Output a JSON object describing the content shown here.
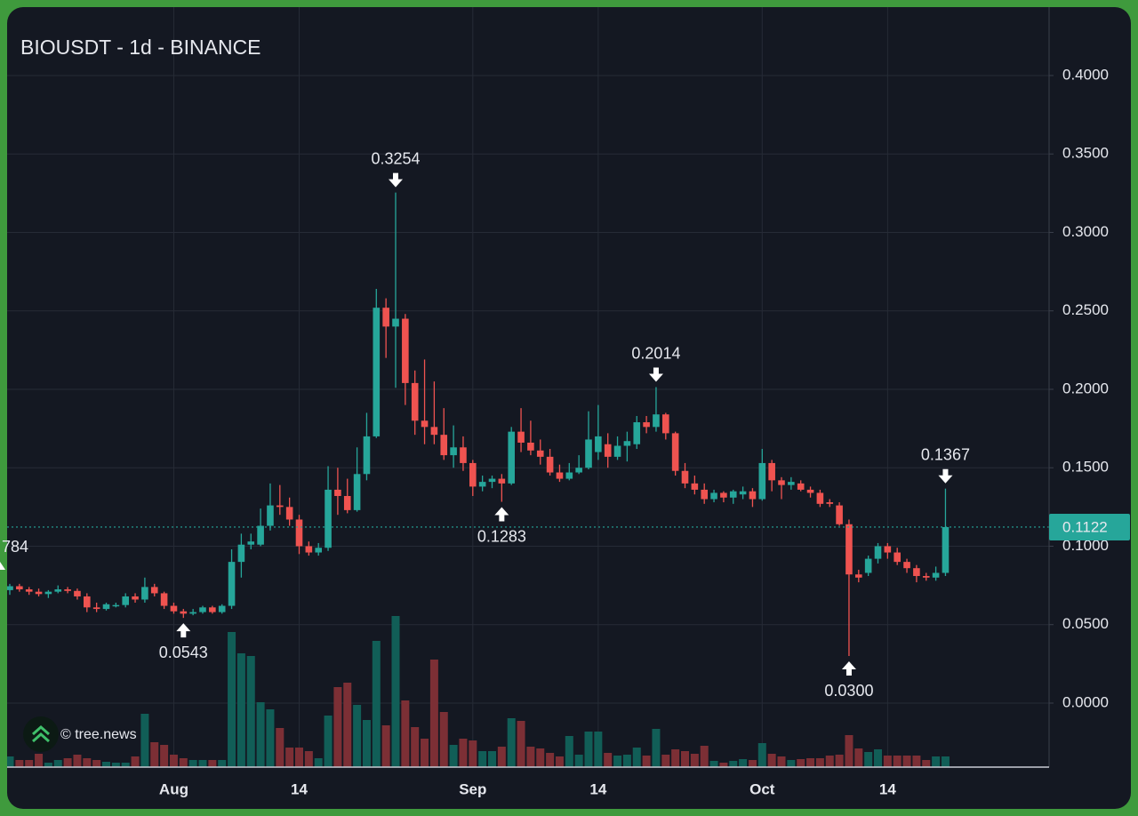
{
  "chart_data": {
    "type": "candlestick",
    "title": "BIOUSDT - 1d - BINANCE",
    "watermark": "© tree.news",
    "categories": [
      null,
      null,
      null,
      null,
      null,
      null,
      null,
      null,
      null,
      null,
      null,
      null,
      null,
      null,
      null,
      null,
      null,
      "Aug",
      null,
      null,
      null,
      null,
      null,
      null,
      null,
      null,
      null,
      null,
      null,
      null,
      "14",
      null,
      null,
      null,
      null,
      null,
      null,
      null,
      null,
      null,
      null,
      null,
      null,
      null,
      null,
      null,
      null,
      null,
      "Sep",
      null,
      null,
      null,
      null,
      null,
      null,
      null,
      null,
      null,
      null,
      null,
      null,
      "14",
      null,
      null,
      null,
      null,
      null,
      null,
      null,
      null,
      null,
      null,
      null,
      null,
      null,
      null,
      null,
      null,
      "Oct",
      null,
      null,
      null,
      null,
      null,
      null,
      null,
      null,
      null,
      null,
      null,
      null,
      "14",
      null,
      null,
      null,
      null,
      null,
      null
    ],
    "open": [
      0.072,
      0.0745,
      0.0725,
      0.071,
      0.0695,
      0.071,
      0.0725,
      0.0715,
      0.068,
      0.061,
      0.06,
      0.062,
      0.0625,
      0.068,
      0.066,
      0.074,
      0.07,
      0.062,
      0.0585,
      0.057,
      0.058,
      0.061,
      0.058,
      0.062,
      0.09,
      0.101,
      0.101,
      0.113,
      0.126,
      0.125,
      0.117,
      0.1,
      0.096,
      0.099,
      0.136,
      0.132,
      0.123,
      0.146,
      0.17,
      0.252,
      0.24,
      0.245,
      0.204,
      0.18,
      0.176,
      0.171,
      0.158,
      0.163,
      0.153,
      0.138,
      0.141,
      0.143,
      0.14,
      0.173,
      0.166,
      0.161,
      0.157,
      0.147,
      0.143,
      0.147,
      0.15,
      0.16,
      0.165,
      0.157,
      0.164,
      0.165,
      0.179,
      0.176,
      0.184,
      0.172,
      0.148,
      0.14,
      0.136,
      0.13,
      0.134,
      0.131,
      0.133,
      0.135,
      0.13,
      0.153,
      0.142,
      0.139,
      0.14,
      0.136,
      0.134,
      0.128,
      0.126,
      0.114,
      0.082,
      0.083,
      0.092,
      0.1,
      0.096,
      0.09,
      0.086,
      0.081,
      0.08,
      0.083
    ],
    "high": [
      0.076,
      0.076,
      0.074,
      0.073,
      0.072,
      0.075,
      0.074,
      0.073,
      0.07,
      0.064,
      0.064,
      0.064,
      0.07,
      0.07,
      0.08,
      0.076,
      0.071,
      0.064,
      0.06,
      0.06,
      0.062,
      0.062,
      0.063,
      0.098,
      0.108,
      0.108,
      0.124,
      0.14,
      0.139,
      0.131,
      0.12,
      0.103,
      0.102,
      0.151,
      0.15,
      0.143,
      0.163,
      0.185,
      0.264,
      0.258,
      0.3254,
      0.248,
      0.212,
      0.219,
      0.205,
      0.188,
      0.177,
      0.17,
      0.155,
      0.145,
      0.145,
      0.146,
      0.176,
      0.188,
      0.18,
      0.168,
      0.162,
      0.152,
      0.153,
      0.158,
      0.186,
      0.19,
      0.172,
      0.17,
      0.173,
      0.183,
      0.183,
      0.2014,
      0.185,
      0.173,
      0.153,
      0.145,
      0.14,
      0.136,
      0.135,
      0.136,
      0.138,
      0.137,
      0.162,
      0.155,
      0.144,
      0.144,
      0.142,
      0.138,
      0.136,
      0.13,
      0.128,
      0.117,
      0.085,
      0.094,
      0.102,
      0.102,
      0.099,
      0.092,
      0.088,
      0.083,
      0.087,
      0.1367
    ],
    "low": [
      0.069,
      0.071,
      0.069,
      0.068,
      0.067,
      0.07,
      0.07,
      0.066,
      0.058,
      0.058,
      0.059,
      0.061,
      0.061,
      0.064,
      0.064,
      0.068,
      0.06,
      0.057,
      0.0543,
      0.056,
      0.057,
      0.057,
      0.057,
      0.06,
      0.08,
      0.098,
      0.1,
      0.11,
      0.12,
      0.113,
      0.095,
      0.094,
      0.094,
      0.097,
      0.12,
      0.121,
      0.122,
      0.142,
      0.169,
      0.22,
      0.201,
      0.19,
      0.171,
      0.165,
      0.165,
      0.155,
      0.15,
      0.148,
      0.132,
      0.135,
      0.137,
      0.1283,
      0.139,
      0.16,
      0.158,
      0.152,
      0.145,
      0.141,
      0.142,
      0.146,
      0.149,
      0.155,
      0.15,
      0.155,
      0.154,
      0.162,
      0.172,
      0.173,
      0.168,
      0.145,
      0.137,
      0.133,
      0.127,
      0.128,
      0.128,
      0.127,
      0.13,
      0.125,
      0.129,
      0.135,
      0.13,
      0.136,
      0.135,
      0.131,
      0.125,
      0.125,
      0.113,
      0.03,
      0.077,
      0.081,
      0.089,
      0.092,
      0.088,
      0.083,
      0.077,
      0.078,
      0.078,
      0.081
    ],
    "close": [
      0.0745,
      0.0725,
      0.071,
      0.0695,
      0.071,
      0.0725,
      0.0715,
      0.068,
      0.061,
      0.06,
      0.063,
      0.0625,
      0.068,
      0.066,
      0.074,
      0.07,
      0.062,
      0.0585,
      0.057,
      0.058,
      0.061,
      0.058,
      0.062,
      0.09,
      0.101,
      0.103,
      0.113,
      0.126,
      0.125,
      0.117,
      0.1,
      0.096,
      0.099,
      0.136,
      0.132,
      0.123,
      0.146,
      0.17,
      0.252,
      0.24,
      0.245,
      0.204,
      0.18,
      0.176,
      0.171,
      0.158,
      0.163,
      0.153,
      0.138,
      0.141,
      0.143,
      0.14,
      0.173,
      0.166,
      0.161,
      0.157,
      0.147,
      0.143,
      0.147,
      0.15,
      0.168,
      0.17,
      0.157,
      0.164,
      0.167,
      0.179,
      0.176,
      0.184,
      0.172,
      0.148,
      0.14,
      0.136,
      0.13,
      0.134,
      0.131,
      0.135,
      0.135,
      0.13,
      0.153,
      0.142,
      0.139,
      0.141,
      0.136,
      0.134,
      0.127,
      0.127,
      0.114,
      0.082,
      0.08,
      0.092,
      0.1,
      0.096,
      0.09,
      0.086,
      0.081,
      0.08,
      0.083,
      0.1122
    ],
    "volume": [
      12,
      8,
      8,
      15,
      5,
      8,
      10,
      14,
      10,
      8,
      6,
      5,
      5,
      12,
      60,
      28,
      25,
      14,
      10,
      8,
      8,
      8,
      8,
      152,
      128,
      125,
      73,
      65,
      44,
      22,
      22,
      18,
      10,
      58,
      90,
      95,
      70,
      53,
      142,
      47,
      170,
      75,
      45,
      32,
      121,
      62,
      25,
      32,
      30,
      18,
      18,
      23,
      55,
      52,
      23,
      21,
      16,
      12,
      35,
      14,
      40,
      40,
      16,
      13,
      14,
      22,
      13,
      43,
      14,
      20,
      18,
      15,
      24,
      7,
      5,
      7,
      9,
      8,
      27,
      15,
      12,
      8,
      9,
      10,
      10,
      13,
      14,
      36,
      21,
      17,
      20,
      13,
      13,
      13,
      13,
      8,
      12,
      12
    ],
    "high_labels": [
      null,
      null,
      null,
      null,
      null,
      null,
      null,
      null,
      null,
      null,
      null,
      null,
      null,
      null,
      null,
      null,
      null,
      null,
      null,
      null,
      null,
      null,
      null,
      null,
      null,
      null,
      null,
      null,
      null,
      null,
      null,
      null,
      null,
      null,
      null,
      null,
      null,
      null,
      null,
      null,
      "0.3254",
      null,
      null,
      null,
      null,
      null,
      null,
      null,
      null,
      null,
      null,
      null,
      null,
      null,
      null,
      null,
      null,
      null,
      null,
      null,
      null,
      null,
      null,
      null,
      null,
      null,
      null,
      "0.2014",
      null,
      null,
      null,
      null,
      null,
      null,
      null,
      null,
      null,
      null,
      null,
      null,
      null,
      null,
      null,
      null,
      null,
      null,
      null,
      null,
      null,
      null,
      null,
      null,
      null,
      null,
      null,
      null,
      null,
      "0.1367"
    ],
    "low_labels": [
      null,
      null,
      null,
      null,
      null,
      null,
      null,
      null,
      null,
      null,
      null,
      null,
      null,
      null,
      null,
      null,
      null,
      null,
      "0.0543",
      null,
      null,
      null,
      null,
      null,
      null,
      null,
      null,
      null,
      null,
      null,
      null,
      null,
      null,
      null,
      null,
      null,
      null,
      null,
      null,
      null,
      null,
      null,
      null,
      null,
      null,
      null,
      null,
      null,
      null,
      null,
      null,
      "0.1283",
      null,
      null,
      null,
      null,
      null,
      null,
      null,
      null,
      null,
      null,
      null,
      null,
      null,
      null,
      null,
      null,
      null,
      null,
      null,
      null,
      null,
      null,
      null,
      null,
      null,
      null,
      null,
      null,
      null,
      null,
      null,
      null,
      null,
      null,
      null,
      "0.0300",
      null,
      null,
      null,
      null,
      null,
      null,
      null,
      null,
      null,
      null
    ],
    "edge_label": "784",
    "last_price_label": "0.1122",
    "ylim": [
      -0.0408,
      0.4436
    ],
    "yticks": [
      {
        "value": 0,
        "label": "0.0000"
      },
      {
        "value": 0.05,
        "label": "0.0500"
      },
      {
        "value": 0.1,
        "label": "0.1000"
      },
      {
        "value": 0.15,
        "label": "0.1500"
      },
      {
        "value": 0.2,
        "label": "0.2000"
      },
      {
        "value": 0.25,
        "label": "0.2500"
      },
      {
        "value": 0.3,
        "label": "0.3000"
      },
      {
        "value": 0.35,
        "label": "0.3500"
      },
      {
        "value": 0.4,
        "label": "0.4000"
      }
    ],
    "vlim": [
      0,
      200
    ],
    "grid": true,
    "up_color": "#26a69a",
    "down_color": "#ef5350",
    "volume_up_color": "#115e57",
    "volume_down_color": "#7c2f35"
  }
}
